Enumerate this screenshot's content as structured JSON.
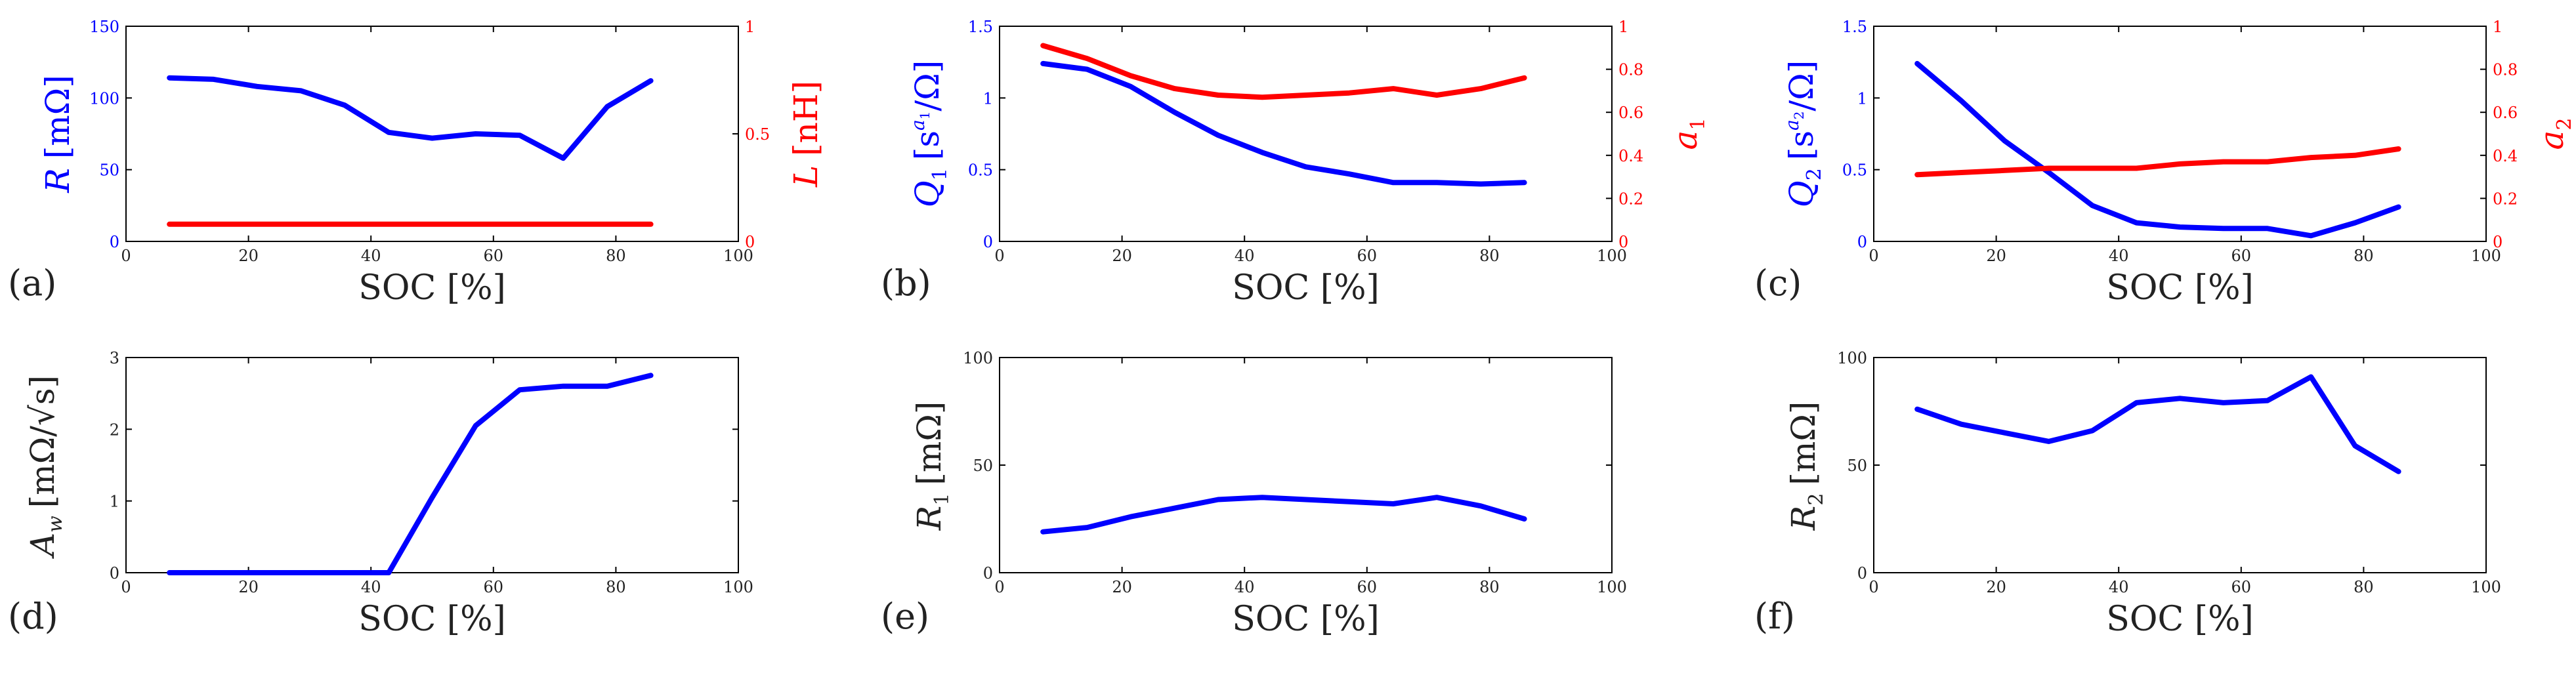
{
  "chart_data": [
    {
      "id": "a",
      "type": "line",
      "panel_label": "(a)",
      "xlabel": "SOC [%]",
      "xlim": [
        0,
        100
      ],
      "xticks": [
        "0",
        "20",
        "40",
        "60",
        "80",
        "100"
      ],
      "ylabel": "R [mΩ]",
      "ylabel_color": "#0000ff",
      "ylim": [
        0,
        150
      ],
      "yticks": [
        "0",
        "50",
        "100",
        "150"
      ],
      "y2label": "L [nH]",
      "y2label_color": "#ff0000",
      "y2lim": [
        0,
        1
      ],
      "y2ticks": [
        "0",
        "0.5",
        "1"
      ],
      "series": [
        {
          "name": "R",
          "axis": "left",
          "color": "#0000ff",
          "x": [
            7.1,
            14.3,
            21.4,
            28.6,
            35.7,
            42.9,
            50,
            57.1,
            64.3,
            71.4,
            78.6,
            85.7
          ],
          "y": [
            114,
            113,
            108,
            105,
            95,
            76,
            72,
            75,
            74,
            58,
            94,
            112
          ]
        },
        {
          "name": "L",
          "axis": "right",
          "color": "#ff0000",
          "x": [
            7.1,
            85.7
          ],
          "y": [
            0.08,
            0.08
          ]
        }
      ]
    },
    {
      "id": "b",
      "type": "line",
      "panel_label": "(b)",
      "xlabel": "SOC [%]",
      "xlim": [
        0,
        100
      ],
      "xticks": [
        "0",
        "20",
        "40",
        "60",
        "80",
        "100"
      ],
      "ylabel": "Q1 [s^a1/Ω]",
      "ylabel_color": "#0000ff",
      "ylim": [
        0,
        1.5
      ],
      "yticks": [
        "0",
        "0.5",
        "1",
        "1.5"
      ],
      "y2label": "a1",
      "y2label_color": "#ff0000",
      "y2lim": [
        0,
        1
      ],
      "y2ticks": [
        "0",
        "0.2",
        "0.4",
        "0.6",
        "0.8",
        "1"
      ],
      "series": [
        {
          "name": "Q1",
          "axis": "left",
          "color": "#0000ff",
          "x": [
            7.1,
            14.3,
            21.4,
            28.6,
            35.7,
            42.9,
            50,
            57.1,
            64.3,
            71.4,
            78.6,
            85.7
          ],
          "y": [
            1.24,
            1.2,
            1.08,
            0.9,
            0.74,
            0.62,
            0.52,
            0.47,
            0.41,
            0.41,
            0.4,
            0.41
          ]
        },
        {
          "name": "a1",
          "axis": "right",
          "color": "#ff0000",
          "x": [
            7.1,
            14.3,
            21.4,
            28.6,
            35.7,
            42.9,
            50,
            57.1,
            64.3,
            71.4,
            78.6,
            85.7
          ],
          "y": [
            0.91,
            0.85,
            0.77,
            0.71,
            0.68,
            0.67,
            0.68,
            0.69,
            0.71,
            0.68,
            0.71,
            0.76
          ]
        }
      ]
    },
    {
      "id": "c",
      "type": "line",
      "panel_label": "(c)",
      "xlabel": "SOC [%]",
      "xlim": [
        0,
        100
      ],
      "xticks": [
        "0",
        "20",
        "40",
        "60",
        "80",
        "100"
      ],
      "ylabel": "Q2 [s^a2/Ω]",
      "ylabel_color": "#0000ff",
      "ylim": [
        0,
        1.5
      ],
      "yticks": [
        "0",
        "0.5",
        "1",
        "1.5"
      ],
      "y2label": "a2",
      "y2label_color": "#ff0000",
      "y2lim": [
        0,
        1
      ],
      "y2ticks": [
        "0",
        "0.2",
        "0.4",
        "0.6",
        "0.8",
        "1"
      ],
      "series": [
        {
          "name": "Q2",
          "axis": "left",
          "color": "#0000ff",
          "x": [
            7.1,
            14.3,
            21.4,
            28.6,
            35.7,
            42.9,
            50,
            57.1,
            64.3,
            71.4,
            78.6,
            85.7
          ],
          "y": [
            1.24,
            0.98,
            0.7,
            0.48,
            0.25,
            0.13,
            0.1,
            0.09,
            0.09,
            0.04,
            0.13,
            0.24
          ]
        },
        {
          "name": "a2",
          "axis": "right",
          "color": "#ff0000",
          "x": [
            7.1,
            14.3,
            21.4,
            28.6,
            35.7,
            42.9,
            50,
            57.1,
            64.3,
            71.4,
            78.6,
            85.7
          ],
          "y": [
            0.31,
            0.32,
            0.33,
            0.34,
            0.34,
            0.34,
            0.36,
            0.37,
            0.37,
            0.39,
            0.4,
            0.43
          ]
        }
      ]
    },
    {
      "id": "d",
      "type": "line",
      "panel_label": "(d)",
      "xlabel": "SOC [%]",
      "xlim": [
        0,
        100
      ],
      "xticks": [
        "0",
        "20",
        "40",
        "60",
        "80",
        "100"
      ],
      "ylabel": "Aw [mΩ/√s]",
      "ylabel_color": "#000000",
      "ylim": [
        0,
        3
      ],
      "yticks": [
        "0",
        "1",
        "2",
        "3"
      ],
      "series": [
        {
          "name": "Aw",
          "axis": "left",
          "color": "#0000ff",
          "x": [
            7.1,
            14.3,
            21.4,
            28.6,
            35.7,
            42.9,
            50,
            57.1,
            64.3,
            71.4,
            78.6,
            85.7
          ],
          "y": [
            0,
            0,
            0,
            0,
            0,
            0,
            1.05,
            2.05,
            2.55,
            2.6,
            2.6,
            2.75
          ]
        }
      ]
    },
    {
      "id": "e",
      "type": "line",
      "panel_label": "(e)",
      "xlabel": "SOC [%]",
      "xlim": [
        0,
        100
      ],
      "xticks": [
        "0",
        "20",
        "40",
        "60",
        "80",
        "100"
      ],
      "ylabel": "R1 [mΩ]",
      "ylabel_color": "#000000",
      "ylim": [
        0,
        100
      ],
      "yticks": [
        "0",
        "50",
        "100"
      ],
      "series": [
        {
          "name": "R1",
          "axis": "left",
          "color": "#0000ff",
          "x": [
            7.1,
            14.3,
            21.4,
            28.6,
            35.7,
            42.9,
            50,
            57.1,
            64.3,
            71.4,
            78.6,
            85.7
          ],
          "y": [
            19,
            21,
            26,
            30,
            34,
            35,
            34,
            33,
            32,
            35,
            31,
            25
          ]
        }
      ]
    },
    {
      "id": "f",
      "type": "line",
      "panel_label": "(f)",
      "xlabel": "SOC [%]",
      "xlim": [
        0,
        100
      ],
      "xticks": [
        "0",
        "20",
        "40",
        "60",
        "80",
        "100"
      ],
      "ylabel": "R2 [mΩ]",
      "ylabel_color": "#000000",
      "ylim": [
        0,
        100
      ],
      "yticks": [
        "0",
        "50",
        "100"
      ],
      "series": [
        {
          "name": "R2",
          "axis": "left",
          "color": "#0000ff",
          "x": [
            7.1,
            14.3,
            21.4,
            28.6,
            35.7,
            42.9,
            50,
            57.1,
            64.3,
            71.4,
            78.6,
            85.7
          ],
          "y": [
            76,
            69,
            65,
            61,
            66,
            79,
            81,
            79,
            80,
            91,
            59,
            47
          ]
        }
      ]
    }
  ]
}
